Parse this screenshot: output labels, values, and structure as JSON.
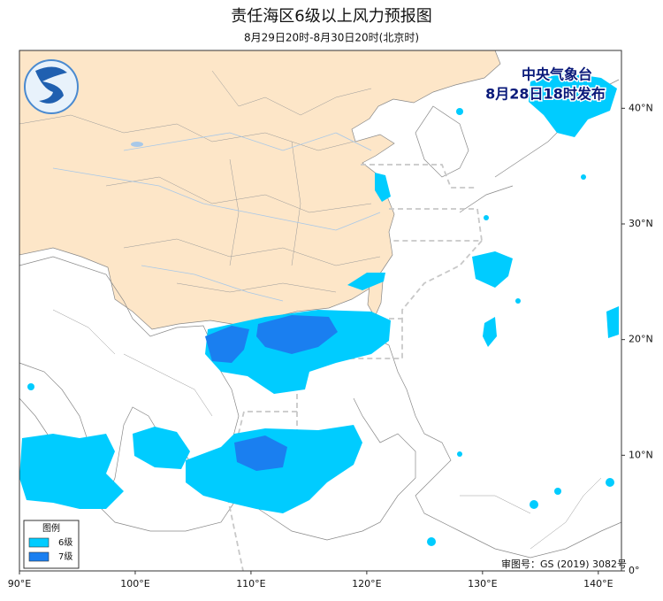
{
  "title": "责任海区6级以上风力预报图",
  "subtitle": "8月29日20时-8月30日20时(北京时)",
  "issuer": "中央气象台",
  "issue_time": "8月28日18时发布",
  "legend": {
    "title": "图例",
    "items": [
      {
        "label": "6级",
        "color": "#00ccff"
      },
      {
        "label": "7级",
        "color": "#1a7ff0"
      }
    ]
  },
  "lon_range": [
    90,
    142
  ],
  "lat_range": [
    0,
    45
  ],
  "lon_ticks": [
    {
      "value": 90,
      "label": "90°E"
    },
    {
      "value": 100,
      "label": "100°E"
    },
    {
      "value": 110,
      "label": "110°E"
    },
    {
      "value": 120,
      "label": "120°E"
    },
    {
      "value": 130,
      "label": "130°E"
    },
    {
      "value": 140,
      "label": "140°E"
    }
  ],
  "lat_ticks": [
    {
      "value": 0,
      "label": "0°"
    },
    {
      "value": 10,
      "label": "10°N"
    },
    {
      "value": 20,
      "label": "20°N"
    },
    {
      "value": 30,
      "label": "30°N"
    },
    {
      "value": 40,
      "label": "40°N"
    }
  ],
  "approval_number": "审图号：GS (2019) 3082号"
}
